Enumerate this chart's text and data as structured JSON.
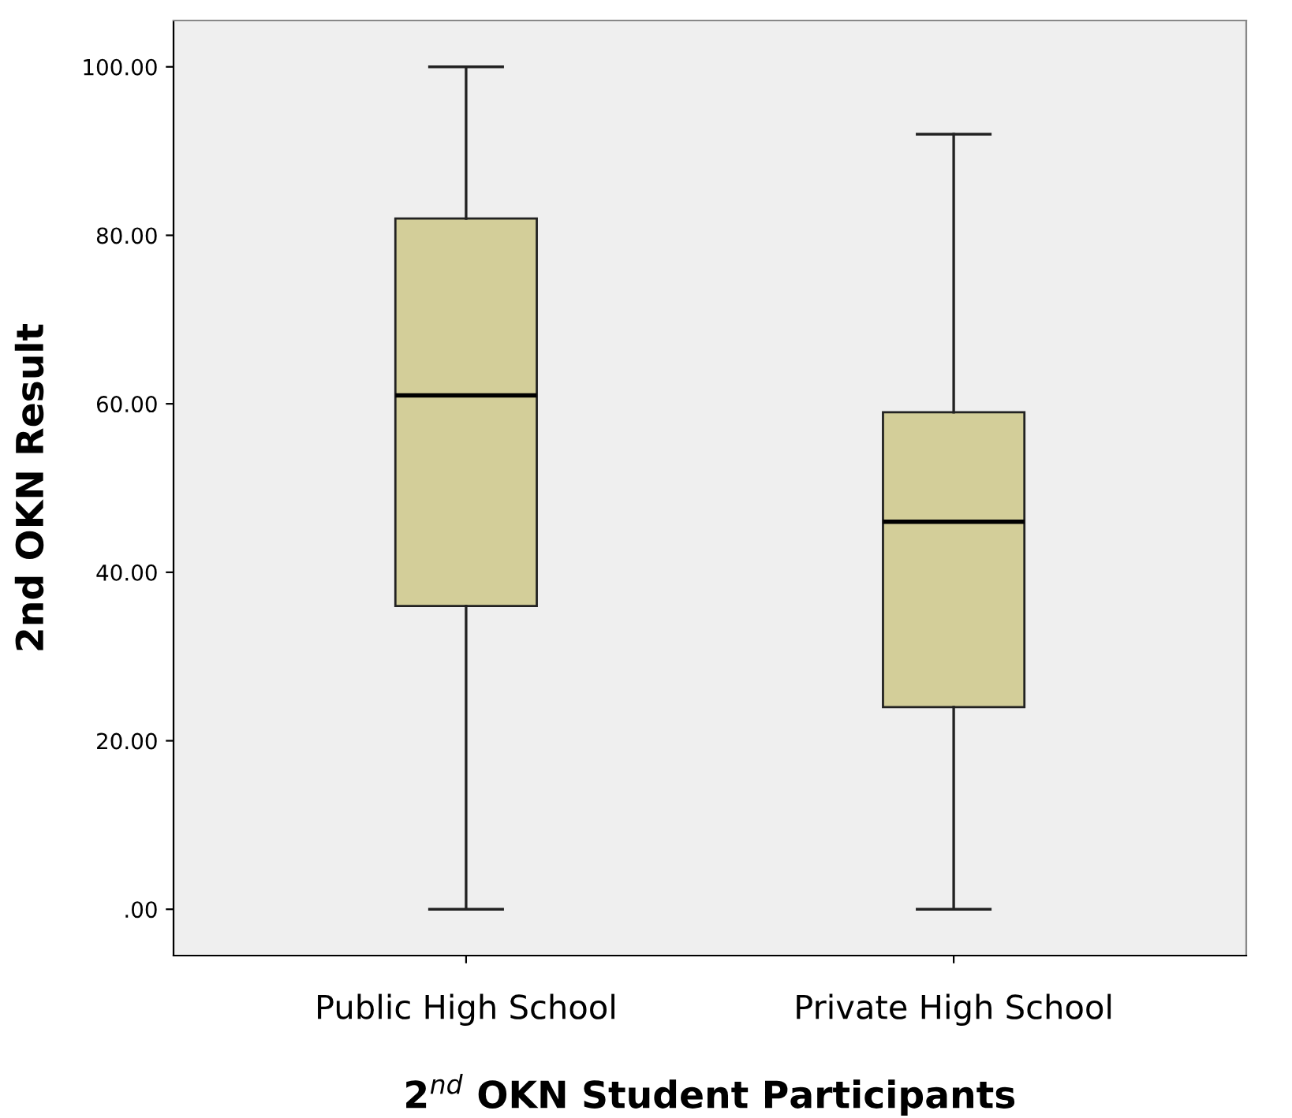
{
  "chart_data": {
    "type": "box",
    "xlabel": "2$^{nd}$ OKN Student Participants",
    "ylabel": "2nd OKN Result",
    "categories": [
      "Public High School",
      "Private High School"
    ],
    "boxes": [
      {
        "low": 0,
        "q1": 36,
        "median": 61,
        "q3": 82,
        "high": 100
      },
      {
        "low": 0,
        "q1": 24,
        "median": 46,
        "q3": 59,
        "high": 92
      }
    ],
    "color": "#d3ce99",
    "ylim": [
      -5.5,
      105.5
    ],
    "yticks": [
      {
        "value": 0,
        "label": ".00"
      },
      {
        "value": 20,
        "label": "20.00"
      },
      {
        "value": 40,
        "label": "40.00"
      },
      {
        "value": 60,
        "label": "60.00"
      },
      {
        "value": 80,
        "label": "80.00"
      },
      {
        "value": 100,
        "label": "100.00"
      }
    ],
    "grid": false
  }
}
